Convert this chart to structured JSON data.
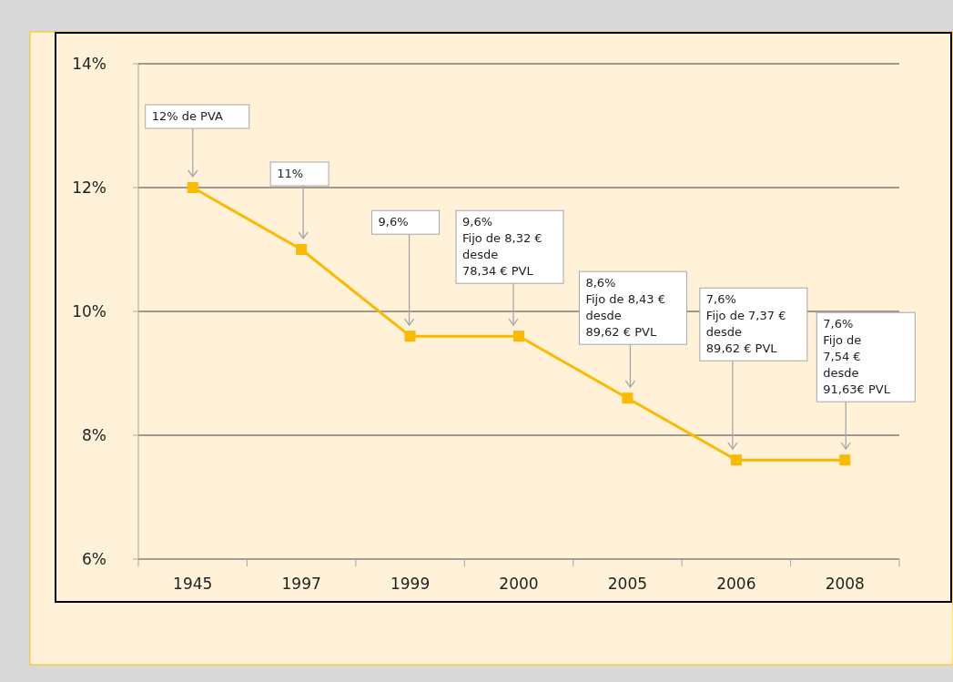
{
  "chart_data": {
    "type": "line",
    "categories": [
      "1945",
      "1997",
      "1999",
      "2000",
      "2005",
      "2006",
      "2008"
    ],
    "series": [
      {
        "color": "#fbb900",
        "values": [
          12,
          11,
          9.6,
          9.6,
          8.6,
          7.6,
          7.6
        ]
      }
    ],
    "ylim": [
      6,
      14
    ],
    "yticks": [
      {
        "value": 6,
        "label": "6%"
      },
      {
        "value": 8,
        "label": "8%"
      },
      {
        "value": 10,
        "label": "10%"
      },
      {
        "value": 12,
        "label": "12%"
      },
      {
        "value": 14,
        "label": "14%"
      }
    ],
    "grid": "y",
    "marker": "square",
    "line_style": "solid",
    "annotations": [
      "12% de PVA",
      "11%",
      "9,6%",
      "9,6%\nFijo de 8,32 €\ndesde\n78,34 € PVL",
      "8,6%\nFijo de 8,43 €\ndesde\n89,62 € PVL",
      "7,6%\nFijo de 7,37 €\ndesde\n89,62 € PVL",
      "7,6%\nFijo de\n7,54 €\ndesde\n91,63€ PVL"
    ]
  }
}
